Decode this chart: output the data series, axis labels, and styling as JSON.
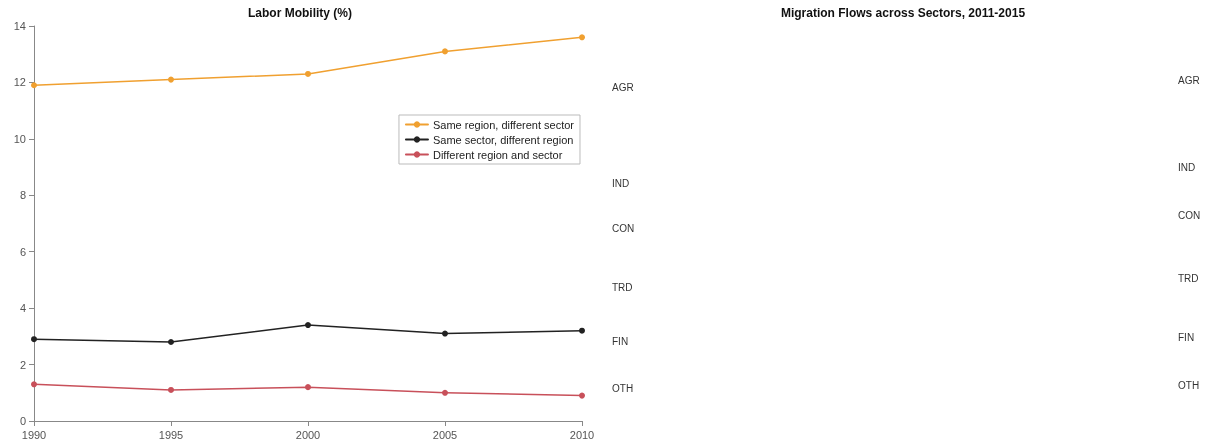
{
  "chart_data": [
    {
      "type": "line",
      "title": "Labor Mobility (%)",
      "x": [
        1990,
        1995,
        2000,
        2005,
        2010
      ],
      "xlim": [
        1990,
        2010
      ],
      "xticks": [
        1990,
        1995,
        2000,
        2005,
        2010
      ],
      "ylim": [
        0,
        14
      ],
      "yticks": [
        0,
        2,
        4,
        6,
        8,
        10,
        12,
        14
      ],
      "grid": false,
      "legend": "top right",
      "marker": "circle",
      "line_style": "solid",
      "series": [
        {
          "name": "Same region, different sector",
          "color": "#f0a030",
          "values": [
            11.9,
            12.1,
            12.3,
            13.1,
            13.6
          ]
        },
        {
          "name": "Same sector, different region",
          "color": "#222222",
          "values": [
            2.9,
            2.8,
            3.4,
            3.1,
            3.2
          ]
        },
        {
          "name": "Different region and sector",
          "color": "#c8505a",
          "values": [
            1.3,
            1.1,
            1.2,
            1.0,
            0.9
          ]
        }
      ]
    },
    {
      "type": "other",
      "title": "Migration Flows across Sectors, 2011-2015",
      "annotations": [
        "AGR",
        "IND",
        "CON",
        "TRD",
        "FIN",
        "OTH",
        "AGR",
        "IND",
        "CON",
        "TRD",
        "FIN",
        "OTH"
      ]
    }
  ]
}
